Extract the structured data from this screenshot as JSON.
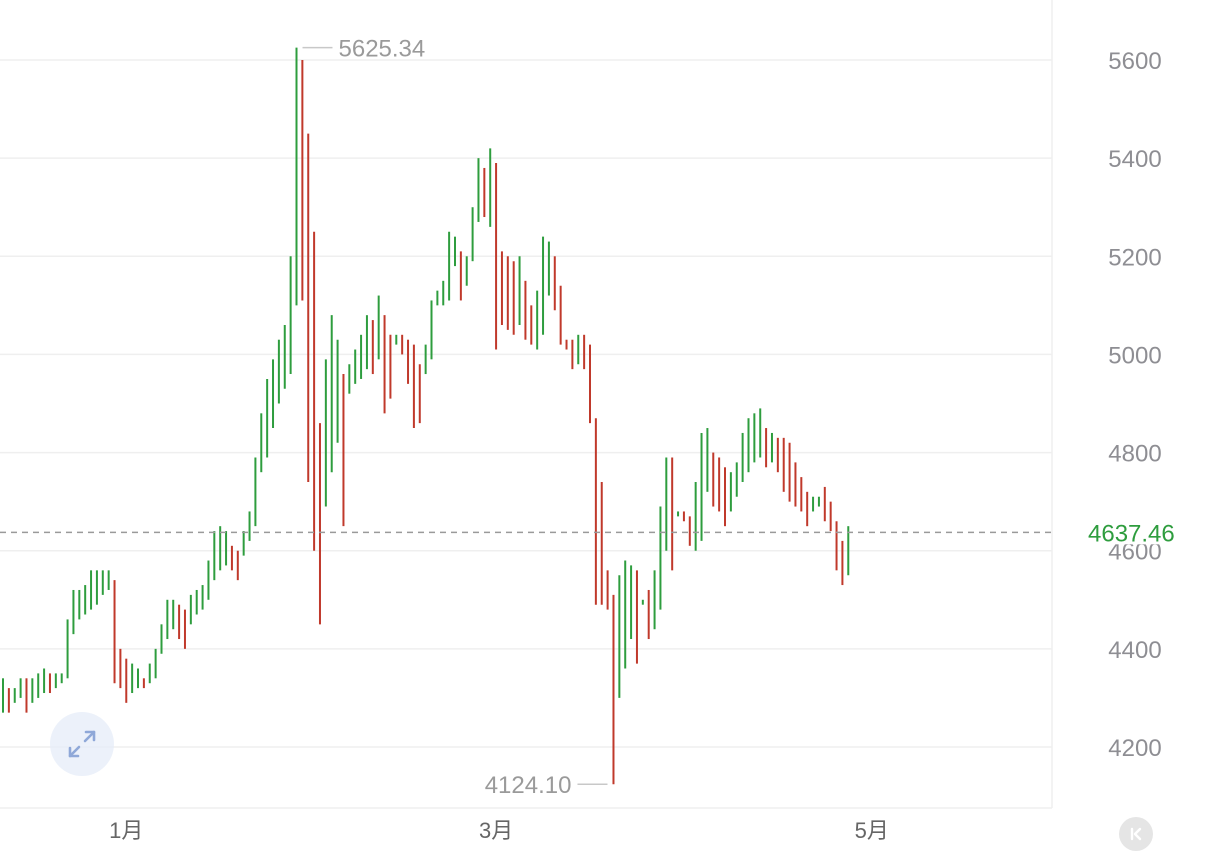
{
  "chart_data": {
    "type": "ohlc",
    "y_ticks": [
      "5600",
      "5400",
      "5200",
      "5000",
      "4800",
      "4600",
      "4400",
      "4200"
    ],
    "y_tick_values": [
      5600,
      5400,
      5200,
      5000,
      4800,
      4600,
      4400,
      4200
    ],
    "x_ticks": [
      {
        "label": "1月",
        "index": 21
      },
      {
        "label": "3月",
        "index": 84
      },
      {
        "label": "5月",
        "index": 148
      }
    ],
    "max_label": "5625.34",
    "max_value": 5625.34,
    "min_label": "4124.10",
    "min_value": 4124.1,
    "current_label": "4637.46",
    "current_value": 4637.46,
    "colors": {
      "up": "#2e9d3e",
      "down": "#c0392b",
      "grid": "#efefef",
      "current_line": "#9a9a9a",
      "current_text": "#2e9d3e"
    },
    "candles": [
      {
        "low": 4270,
        "high": 4340
      },
      {
        "low": 4270,
        "high": 4320
      },
      {
        "low": 4290,
        "high": 4320
      },
      {
        "low": 4300,
        "high": 4340
      },
      {
        "low": 4270,
        "high": 4340
      },
      {
        "low": 4290,
        "high": 4340
      },
      {
        "low": 4300,
        "high": 4350
      },
      {
        "low": 4310,
        "high": 4360
      },
      {
        "low": 4310,
        "high": 4350
      },
      {
        "low": 4320,
        "high": 4350
      },
      {
        "low": 4330,
        "high": 4350
      },
      {
        "low": 4340,
        "high": 4460
      },
      {
        "low": 4430,
        "high": 4520
      },
      {
        "low": 4460,
        "high": 4520
      },
      {
        "low": 4470,
        "high": 4530
      },
      {
        "low": 4480,
        "high": 4560
      },
      {
        "low": 4490,
        "high": 4560
      },
      {
        "low": 4510,
        "high": 4560
      },
      {
        "low": 4520,
        "high": 4560
      },
      {
        "low": 4330,
        "high": 4540
      },
      {
        "low": 4320,
        "high": 4400
      },
      {
        "low": 4290,
        "high": 4380
      },
      {
        "low": 4310,
        "high": 4370
      },
      {
        "low": 4320,
        "high": 4360
      },
      {
        "low": 4320,
        "high": 4340
      },
      {
        "low": 4330,
        "high": 4370
      },
      {
        "low": 4340,
        "high": 4400
      },
      {
        "low": 4390,
        "high": 4450
      },
      {
        "low": 4420,
        "high": 4500
      },
      {
        "low": 4440,
        "high": 4500
      },
      {
        "low": 4420,
        "high": 4490
      },
      {
        "low": 4400,
        "high": 4480
      },
      {
        "low": 4450,
        "high": 4510
      },
      {
        "low": 4470,
        "high": 4520
      },
      {
        "low": 4480,
        "high": 4530
      },
      {
        "low": 4500,
        "high": 4580
      },
      {
        "low": 4540,
        "high": 4640
      },
      {
        "low": 4560,
        "high": 4650
      },
      {
        "low": 4570,
        "high": 4640
      },
      {
        "low": 4560,
        "high": 4610
      },
      {
        "low": 4540,
        "high": 4600
      },
      {
        "low": 4590,
        "high": 4640
      },
      {
        "low": 4620,
        "high": 4680
      },
      {
        "low": 4650,
        "high": 4790
      },
      {
        "low": 4760,
        "high": 4880
      },
      {
        "low": 4790,
        "high": 4950
      },
      {
        "low": 4850,
        "high": 4990
      },
      {
        "low": 4900,
        "high": 5030
      },
      {
        "low": 4930,
        "high": 5060
      },
      {
        "low": 4960,
        "high": 5200
      },
      {
        "low": 5100,
        "high": 5625.34
      },
      {
        "low": 5110,
        "high": 5600
      },
      {
        "low": 4740,
        "high": 5450
      },
      {
        "low": 4600,
        "high": 5250
      },
      {
        "low": 4450,
        "high": 4860
      },
      {
        "low": 4690,
        "high": 4990
      },
      {
        "low": 4760,
        "high": 5080
      },
      {
        "low": 4820,
        "high": 5030
      },
      {
        "low": 4650,
        "high": 4960
      },
      {
        "low": 4920,
        "high": 4980
      },
      {
        "low": 4940,
        "high": 5010
      },
      {
        "low": 4950,
        "high": 5040
      },
      {
        "low": 4970,
        "high": 5080
      },
      {
        "low": 4960,
        "high": 5070
      },
      {
        "low": 4990,
        "high": 5120
      },
      {
        "low": 4880,
        "high": 5080
      },
      {
        "low": 4910,
        "high": 5040
      },
      {
        "low": 5020,
        "high": 5040
      },
      {
        "low": 5000,
        "high": 5040
      },
      {
        "low": 4940,
        "high": 5030
      },
      {
        "low": 4850,
        "high": 5020
      },
      {
        "low": 4860,
        "high": 4980
      },
      {
        "low": 4960,
        "high": 5020
      },
      {
        "low": 4990,
        "high": 5110
      },
      {
        "low": 5100,
        "high": 5130
      },
      {
        "low": 5100,
        "high": 5150
      },
      {
        "low": 5110,
        "high": 5250
      },
      {
        "low": 5180,
        "high": 5240
      },
      {
        "low": 5110,
        "high": 5210
      },
      {
        "low": 5140,
        "high": 5200
      },
      {
        "low": 5190,
        "high": 5300
      },
      {
        "low": 5270,
        "high": 5400
      },
      {
        "low": 5280,
        "high": 5380
      },
      {
        "low": 5260,
        "high": 5420
      },
      {
        "low": 5010,
        "high": 5390
      },
      {
        "low": 5060,
        "high": 5210
      },
      {
        "low": 5050,
        "high": 5200
      },
      {
        "low": 5040,
        "high": 5190
      },
      {
        "low": 5060,
        "high": 5200
      },
      {
        "low": 5030,
        "high": 5150
      },
      {
        "low": 5020,
        "high": 5100
      },
      {
        "low": 5010,
        "high": 5130
      },
      {
        "low": 5040,
        "high": 5240
      },
      {
        "low": 5120,
        "high": 5230
      },
      {
        "low": 5090,
        "high": 5200
      },
      {
        "low": 5020,
        "high": 5140
      },
      {
        "low": 5010,
        "high": 5030
      },
      {
        "low": 4970,
        "high": 5030
      },
      {
        "low": 4980,
        "high": 5040
      },
      {
        "low": 4970,
        "high": 5040
      },
      {
        "low": 4860,
        "high": 5020
      },
      {
        "low": 4490,
        "high": 4870
      },
      {
        "low": 4490,
        "high": 4740
      },
      {
        "low": 4480,
        "high": 4560
      },
      {
        "low": 4124.1,
        "high": 4510
      },
      {
        "low": 4300,
        "high": 4550
      },
      {
        "low": 4360,
        "high": 4580
      },
      {
        "low": 4420,
        "high": 4570
      },
      {
        "low": 4370,
        "high": 4560
      },
      {
        "low": 4490,
        "high": 4500
      },
      {
        "low": 4420,
        "high": 4520
      },
      {
        "low": 4440,
        "high": 4560
      },
      {
        "low": 4480,
        "high": 4690
      },
      {
        "low": 4600,
        "high": 4790
      },
      {
        "low": 4560,
        "high": 4790
      },
      {
        "low": 4670,
        "high": 4680
      },
      {
        "low": 4660,
        "high": 4680
      },
      {
        "low": 4610,
        "high": 4670
      },
      {
        "low": 4600,
        "high": 4740
      },
      {
        "low": 4620,
        "high": 4840
      },
      {
        "low": 4720,
        "high": 4850
      },
      {
        "low": 4690,
        "high": 4800
      },
      {
        "low": 4680,
        "high": 4790
      },
      {
        "low": 4650,
        "high": 4770
      },
      {
        "low": 4680,
        "high": 4760
      },
      {
        "low": 4710,
        "high": 4780
      },
      {
        "low": 4740,
        "high": 4840
      },
      {
        "low": 4760,
        "high": 4870
      },
      {
        "low": 4780,
        "high": 4880
      },
      {
        "low": 4790,
        "high": 4890
      },
      {
        "low": 4770,
        "high": 4850
      },
      {
        "low": 4780,
        "high": 4840
      },
      {
        "low": 4760,
        "high": 4830
      },
      {
        "low": 4720,
        "high": 4830
      },
      {
        "low": 4700,
        "high": 4820
      },
      {
        "low": 4690,
        "high": 4780
      },
      {
        "low": 4680,
        "high": 4750
      },
      {
        "low": 4650,
        "high": 4720
      },
      {
        "low": 4680,
        "high": 4710
      },
      {
        "low": 4690,
        "high": 4710
      },
      {
        "low": 4660,
        "high": 4730
      },
      {
        "low": 4640,
        "high": 4700
      },
      {
        "low": 4560,
        "high": 4660
      },
      {
        "low": 4530,
        "high": 4620
      },
      {
        "low": 4550,
        "high": 4650
      }
    ]
  }
}
